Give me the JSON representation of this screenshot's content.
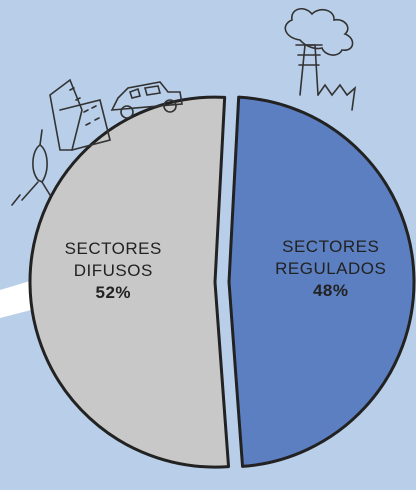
{
  "chart_data": {
    "type": "pie",
    "categories": [
      "SECTORES DIFUSOS",
      "SECTORES REGULADOS"
    ],
    "values": [
      52,
      48
    ],
    "value_labels": [
      "52%",
      "48%"
    ],
    "colors": [
      "#c8c8c8",
      "#5b7fc0"
    ]
  }
}
